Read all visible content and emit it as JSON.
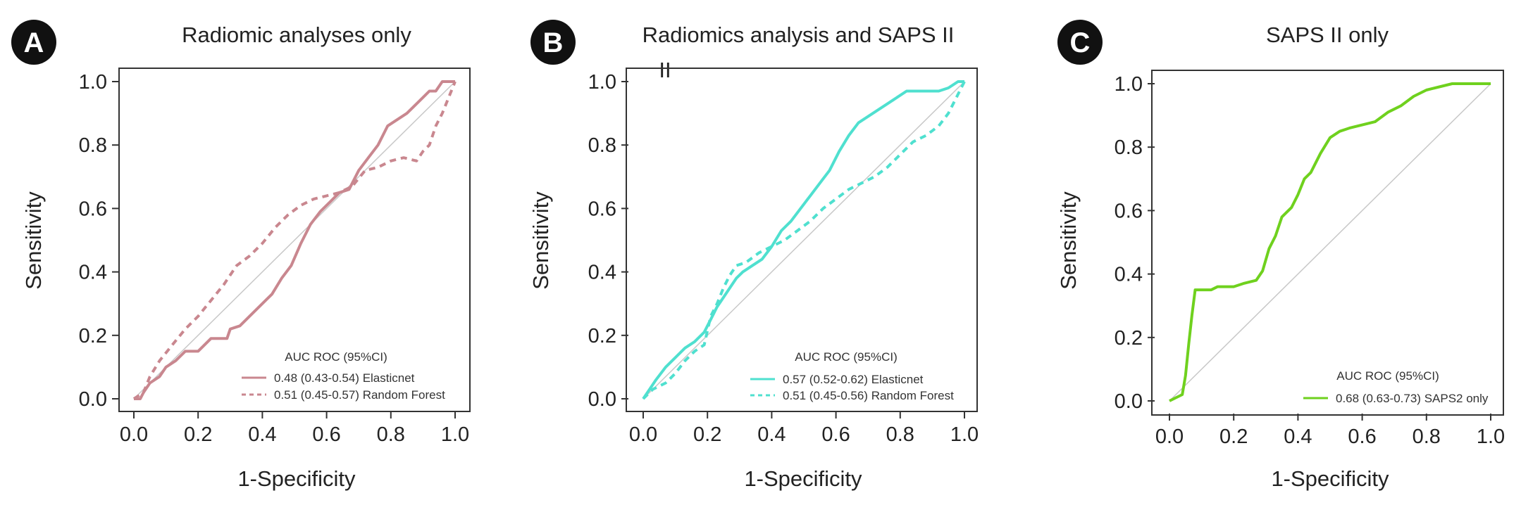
{
  "chart_data": [
    {
      "type": "line",
      "panel_label": "A",
      "title": "Radiomic analyses only",
      "xlabel": "1-Specificity",
      "ylabel": "Sensitivity",
      "xlim": [
        0,
        1
      ],
      "ylim": [
        0,
        1
      ],
      "ticks": [
        "0.0",
        "0.2",
        "0.4",
        "0.6",
        "0.8",
        "1.0"
      ],
      "legend_title": "AUC ROC (95%CI)",
      "series": [
        {
          "name": "0.48 (0.43-0.54) Elasticnet",
          "style": "solid",
          "color": "#c9878f",
          "x": [
            0,
            0.02,
            0.03,
            0.05,
            0.08,
            0.1,
            0.13,
            0.16,
            0.2,
            0.24,
            0.27,
            0.29,
            0.3,
            0.33,
            0.36,
            0.4,
            0.43,
            0.46,
            0.49,
            0.52,
            0.55,
            0.58,
            0.61,
            0.64,
            0.67,
            0.7,
            0.73,
            0.76,
            0.79,
            0.82,
            0.85,
            0.88,
            0.9,
            0.92,
            0.94,
            0.96,
            1.0
          ],
          "y": [
            0,
            0,
            0.02,
            0.05,
            0.07,
            0.1,
            0.12,
            0.15,
            0.15,
            0.19,
            0.19,
            0.19,
            0.22,
            0.23,
            0.26,
            0.3,
            0.33,
            0.38,
            0.42,
            0.49,
            0.55,
            0.59,
            0.62,
            0.65,
            0.66,
            0.72,
            0.76,
            0.8,
            0.86,
            0.88,
            0.9,
            0.93,
            0.95,
            0.97,
            0.97,
            1.0,
            1.0
          ]
        },
        {
          "name": "0.51 (0.45-0.57) Random Forest",
          "style": "dashed",
          "color": "#c9878f",
          "x": [
            0,
            0.03,
            0.05,
            0.08,
            0.12,
            0.16,
            0.2,
            0.24,
            0.28,
            0.32,
            0.36,
            0.4,
            0.44,
            0.48,
            0.52,
            0.56,
            0.6,
            0.64,
            0.68,
            0.72,
            0.76,
            0.8,
            0.84,
            0.88,
            0.9,
            0.92,
            0.94,
            0.96,
            0.98,
            1.0
          ],
          "y": [
            0,
            0.02,
            0.07,
            0.12,
            0.17,
            0.22,
            0.26,
            0.31,
            0.36,
            0.42,
            0.45,
            0.49,
            0.54,
            0.58,
            0.61,
            0.63,
            0.64,
            0.65,
            0.67,
            0.72,
            0.73,
            0.75,
            0.76,
            0.75,
            0.78,
            0.8,
            0.86,
            0.9,
            0.95,
            1.0
          ]
        }
      ]
    },
    {
      "type": "line",
      "panel_label": "B",
      "title": "Radiomics analysis and SAPS II",
      "title_overflow": "II",
      "xlabel": "1-Specificity",
      "ylabel": "Sensitivity",
      "xlim": [
        0,
        1
      ],
      "ylim": [
        0,
        1
      ],
      "ticks": [
        "0.0",
        "0.2",
        "0.4",
        "0.6",
        "0.8",
        "1.0"
      ],
      "legend_title": "AUC ROC (95%CI)",
      "series": [
        {
          "name": "0.57 (0.52-0.62) Elasticnet",
          "style": "solid",
          "color": "#4fe0cf",
          "x": [
            0,
            0.02,
            0.04,
            0.07,
            0.1,
            0.13,
            0.16,
            0.19,
            0.21,
            0.23,
            0.25,
            0.27,
            0.29,
            0.31,
            0.34,
            0.37,
            0.4,
            0.43,
            0.46,
            0.49,
            0.52,
            0.55,
            0.58,
            0.61,
            0.64,
            0.67,
            0.7,
            0.73,
            0.76,
            0.79,
            0.82,
            0.85,
            0.88,
            0.92,
            0.95,
            0.98,
            1.0
          ],
          "y": [
            0,
            0.03,
            0.06,
            0.1,
            0.13,
            0.16,
            0.18,
            0.21,
            0.25,
            0.29,
            0.32,
            0.35,
            0.38,
            0.4,
            0.42,
            0.44,
            0.48,
            0.53,
            0.56,
            0.6,
            0.64,
            0.68,
            0.72,
            0.78,
            0.83,
            0.87,
            0.89,
            0.91,
            0.93,
            0.95,
            0.97,
            0.97,
            0.97,
            0.97,
            0.98,
            1.0,
            1.0
          ]
        },
        {
          "name": "0.51 (0.45-0.56) Random Forest",
          "style": "dashed",
          "color": "#4fe0cf",
          "x": [
            0,
            0.03,
            0.07,
            0.1,
            0.13,
            0.16,
            0.19,
            0.21,
            0.23,
            0.25,
            0.27,
            0.29,
            0.32,
            0.36,
            0.4,
            0.44,
            0.48,
            0.52,
            0.56,
            0.6,
            0.64,
            0.68,
            0.72,
            0.76,
            0.8,
            0.84,
            0.88,
            0.92,
            0.95,
            0.98,
            1.0
          ],
          "y": [
            0,
            0.03,
            0.05,
            0.08,
            0.12,
            0.15,
            0.17,
            0.26,
            0.3,
            0.35,
            0.39,
            0.42,
            0.43,
            0.46,
            0.48,
            0.5,
            0.53,
            0.56,
            0.6,
            0.63,
            0.66,
            0.68,
            0.7,
            0.73,
            0.77,
            0.81,
            0.83,
            0.86,
            0.9,
            0.96,
            1.0
          ]
        }
      ]
    },
    {
      "type": "line",
      "panel_label": "C",
      "title": "SAPS II only",
      "xlabel": "1-Specificity",
      "ylabel": "Sensitivity",
      "xlim": [
        0,
        1
      ],
      "ylim": [
        0,
        1
      ],
      "ticks": [
        "0.0",
        "0.2",
        "0.4",
        "0.6",
        "0.8",
        "1.0"
      ],
      "legend_title": "AUC ROC (95%CI)",
      "series": [
        {
          "name": "0.68 (0.63-0.73) SAPS2 only",
          "style": "solid",
          "color": "#6fd11e",
          "x": [
            0,
            0.02,
            0.04,
            0.05,
            0.06,
            0.07,
            0.08,
            0.1,
            0.13,
            0.15,
            0.2,
            0.23,
            0.27,
            0.29,
            0.31,
            0.33,
            0.35,
            0.38,
            0.4,
            0.42,
            0.44,
            0.47,
            0.5,
            0.53,
            0.56,
            0.6,
            0.64,
            0.68,
            0.72,
            0.76,
            0.8,
            0.84,
            0.88,
            0.92,
            0.96,
            1.0
          ],
          "y": [
            0,
            0.01,
            0.02,
            0.08,
            0.18,
            0.27,
            0.35,
            0.35,
            0.35,
            0.36,
            0.36,
            0.37,
            0.38,
            0.41,
            0.48,
            0.52,
            0.58,
            0.61,
            0.65,
            0.7,
            0.72,
            0.78,
            0.83,
            0.85,
            0.86,
            0.87,
            0.88,
            0.91,
            0.93,
            0.96,
            0.98,
            0.99,
            1.0,
            1.0,
            1.0,
            1.0
          ]
        }
      ]
    }
  ],
  "colors": {
    "badge": "#111111",
    "axis": "#333333",
    "diagonal": "#c8c8c8"
  }
}
